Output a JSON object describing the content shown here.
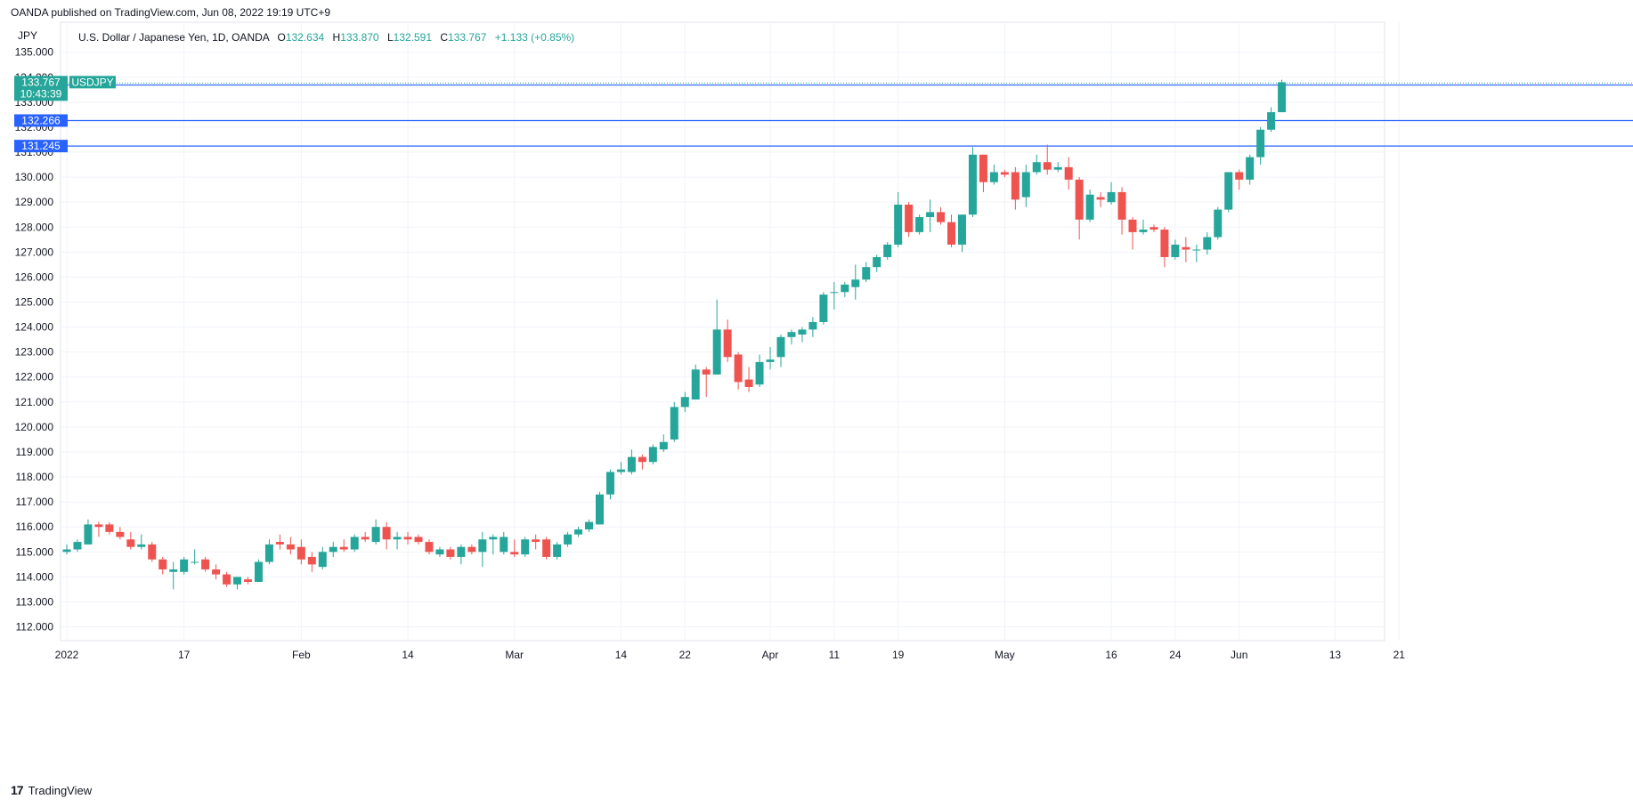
{
  "header": {
    "publisher_line": "OANDA published on TradingView.com, Jun 08, 2022 19:19 UTC+9"
  },
  "legend": {
    "symbol_desc": "U.S. Dollar / Japanese Yen, 1D, OANDA",
    "o_label": "O",
    "o_value": "132.634",
    "h_label": "H",
    "h_value": "133.870",
    "l_label": "L",
    "l_value": "132.591",
    "c_label": "C",
    "c_value": "133.767",
    "change": "+1.133 (+0.85%)"
  },
  "footer": {
    "brand": "TradingView",
    "mark": "17"
  },
  "colors": {
    "up": "#26a69a",
    "down": "#ef5350",
    "hline": "#2962ff",
    "price_tag": "#26a69a",
    "grid": "#f0f3fa"
  },
  "chart_data": {
    "type": "candlestick",
    "title": "U.S. Dollar / Japanese Yen, 1D, OANDA",
    "currency_label": "JPY",
    "y_ticks": [
      "112.000",
      "113.000",
      "114.000",
      "115.000",
      "116.000",
      "117.000",
      "118.000",
      "119.000",
      "120.000",
      "121.000",
      "122.000",
      "123.000",
      "124.000",
      "125.000",
      "126.000",
      "127.000",
      "128.000",
      "129.000",
      "130.000",
      "131.000",
      "132.000",
      "133.000",
      "134.000",
      "135.000"
    ],
    "ylim": [
      111.45,
      136.2
    ],
    "x_ticks": [
      {
        "label": "2022",
        "idx": 0
      },
      {
        "label": "17",
        "idx": 11
      },
      {
        "label": "Feb",
        "idx": 22
      },
      {
        "label": "14",
        "idx": 32
      },
      {
        "label": "Mar",
        "idx": 42
      },
      {
        "label": "14",
        "idx": 52
      },
      {
        "label": "22",
        "idx": 58
      },
      {
        "label": "Apr",
        "idx": 66
      },
      {
        "label": "11",
        "idx": 72
      },
      {
        "label": "19",
        "idx": 78
      },
      {
        "label": "May",
        "idx": 88
      },
      {
        "label": "16",
        "idx": 98
      },
      {
        "label": "24",
        "idx": 104
      },
      {
        "label": "Jun",
        "idx": 110
      },
      {
        "label": "13",
        "idx": 119
      },
      {
        "label": "21",
        "idx": 125
      }
    ],
    "horizontal_lines": [
      {
        "value": 133.687,
        "label": "133.687"
      },
      {
        "value": 132.266,
        "label": "132.266"
      },
      {
        "value": 131.245,
        "label": "131.245"
      }
    ],
    "last_price": {
      "value": 133.767,
      "label": "133.767",
      "countdown": "10:43:39",
      "symbol": "USDJPY"
    },
    "candles": [
      {
        "o": 115.0,
        "h": 115.3,
        "l": 114.9,
        "c": 115.1
      },
      {
        "o": 115.1,
        "h": 115.5,
        "l": 115.0,
        "c": 115.4
      },
      {
        "o": 115.3,
        "h": 116.3,
        "l": 115.3,
        "c": 116.1
      },
      {
        "o": 116.1,
        "h": 116.2,
        "l": 115.6,
        "c": 116.0
      },
      {
        "o": 116.1,
        "h": 116.2,
        "l": 115.7,
        "c": 115.8
      },
      {
        "o": 115.8,
        "h": 116.0,
        "l": 115.5,
        "c": 115.6
      },
      {
        "o": 115.5,
        "h": 115.8,
        "l": 115.1,
        "c": 115.2
      },
      {
        "o": 115.2,
        "h": 115.7,
        "l": 115.1,
        "c": 115.3
      },
      {
        "o": 115.3,
        "h": 115.4,
        "l": 114.6,
        "c": 114.7
      },
      {
        "o": 114.7,
        "h": 114.8,
        "l": 114.1,
        "c": 114.3
      },
      {
        "o": 114.2,
        "h": 114.6,
        "l": 113.5,
        "c": 114.3
      },
      {
        "o": 114.2,
        "h": 114.8,
        "l": 114.1,
        "c": 114.7
      },
      {
        "o": 114.6,
        "h": 115.1,
        "l": 114.5,
        "c": 114.6
      },
      {
        "o": 114.7,
        "h": 114.8,
        "l": 114.2,
        "c": 114.3
      },
      {
        "o": 114.3,
        "h": 114.5,
        "l": 113.9,
        "c": 114.1
      },
      {
        "o": 114.1,
        "h": 114.2,
        "l": 113.6,
        "c": 113.7
      },
      {
        "o": 113.7,
        "h": 114.0,
        "l": 113.5,
        "c": 114.0
      },
      {
        "o": 113.9,
        "h": 114.0,
        "l": 113.7,
        "c": 113.8
      },
      {
        "o": 113.8,
        "h": 114.7,
        "l": 113.8,
        "c": 114.6
      },
      {
        "o": 114.6,
        "h": 115.5,
        "l": 114.5,
        "c": 115.3
      },
      {
        "o": 115.4,
        "h": 115.7,
        "l": 115.1,
        "c": 115.3
      },
      {
        "o": 115.3,
        "h": 115.6,
        "l": 114.9,
        "c": 115.1
      },
      {
        "o": 115.2,
        "h": 115.5,
        "l": 114.5,
        "c": 114.7
      },
      {
        "o": 114.8,
        "h": 115.0,
        "l": 114.2,
        "c": 114.5
      },
      {
        "o": 114.4,
        "h": 115.2,
        "l": 114.3,
        "c": 115.0
      },
      {
        "o": 115.0,
        "h": 115.4,
        "l": 114.8,
        "c": 115.2
      },
      {
        "o": 115.2,
        "h": 115.5,
        "l": 115.0,
        "c": 115.1
      },
      {
        "o": 115.1,
        "h": 115.7,
        "l": 115.0,
        "c": 115.6
      },
      {
        "o": 115.6,
        "h": 115.8,
        "l": 115.4,
        "c": 115.5
      },
      {
        "o": 115.4,
        "h": 116.3,
        "l": 115.3,
        "c": 116.0
      },
      {
        "o": 116.0,
        "h": 116.2,
        "l": 115.1,
        "c": 115.5
      },
      {
        "o": 115.5,
        "h": 115.8,
        "l": 115.1,
        "c": 115.6
      },
      {
        "o": 115.6,
        "h": 115.8,
        "l": 115.3,
        "c": 115.5
      },
      {
        "o": 115.6,
        "h": 115.7,
        "l": 115.3,
        "c": 115.4
      },
      {
        "o": 115.4,
        "h": 115.5,
        "l": 114.9,
        "c": 115.0
      },
      {
        "o": 114.9,
        "h": 115.2,
        "l": 114.8,
        "c": 115.1
      },
      {
        "o": 115.1,
        "h": 115.2,
        "l": 114.7,
        "c": 114.8
      },
      {
        "o": 114.8,
        "h": 115.3,
        "l": 114.5,
        "c": 115.2
      },
      {
        "o": 115.2,
        "h": 115.3,
        "l": 114.9,
        "c": 115.0
      },
      {
        "o": 115.0,
        "h": 115.8,
        "l": 114.4,
        "c": 115.5
      },
      {
        "o": 115.5,
        "h": 115.7,
        "l": 114.9,
        "c": 115.6
      },
      {
        "o": 115.0,
        "h": 115.8,
        "l": 114.9,
        "c": 115.6
      },
      {
        "o": 115.0,
        "h": 115.5,
        "l": 114.8,
        "c": 114.9
      },
      {
        "o": 114.9,
        "h": 115.6,
        "l": 114.8,
        "c": 115.5
      },
      {
        "o": 115.5,
        "h": 115.7,
        "l": 115.1,
        "c": 115.4
      },
      {
        "o": 115.5,
        "h": 115.6,
        "l": 114.7,
        "c": 114.8
      },
      {
        "o": 114.8,
        "h": 115.4,
        "l": 114.7,
        "c": 115.3
      },
      {
        "o": 115.3,
        "h": 115.8,
        "l": 115.2,
        "c": 115.7
      },
      {
        "o": 115.7,
        "h": 116.0,
        "l": 115.6,
        "c": 115.9
      },
      {
        "o": 115.9,
        "h": 116.3,
        "l": 115.8,
        "c": 116.2
      },
      {
        "o": 116.1,
        "h": 117.4,
        "l": 116.1,
        "c": 117.3
      },
      {
        "o": 117.3,
        "h": 118.3,
        "l": 117.1,
        "c": 118.2
      },
      {
        "o": 118.2,
        "h": 118.6,
        "l": 118.1,
        "c": 118.3
      },
      {
        "o": 118.2,
        "h": 119.1,
        "l": 118.1,
        "c": 118.8
      },
      {
        "o": 118.8,
        "h": 118.9,
        "l": 118.3,
        "c": 118.6
      },
      {
        "o": 118.6,
        "h": 119.3,
        "l": 118.5,
        "c": 119.2
      },
      {
        "o": 119.1,
        "h": 119.7,
        "l": 119.0,
        "c": 119.4
      },
      {
        "o": 119.5,
        "h": 121.0,
        "l": 119.4,
        "c": 120.8
      },
      {
        "o": 120.8,
        "h": 121.4,
        "l": 120.6,
        "c": 121.2
      },
      {
        "o": 121.1,
        "h": 122.5,
        "l": 121.1,
        "c": 122.3
      },
      {
        "o": 122.3,
        "h": 122.4,
        "l": 121.2,
        "c": 122.1
      },
      {
        "o": 122.1,
        "h": 125.1,
        "l": 122.1,
        "c": 123.9
      },
      {
        "o": 123.9,
        "h": 124.3,
        "l": 122.6,
        "c": 122.8
      },
      {
        "o": 122.9,
        "h": 123.0,
        "l": 121.5,
        "c": 121.8
      },
      {
        "o": 121.9,
        "h": 122.4,
        "l": 121.4,
        "c": 121.6
      },
      {
        "o": 121.7,
        "h": 122.9,
        "l": 121.6,
        "c": 122.6
      },
      {
        "o": 122.6,
        "h": 123.2,
        "l": 122.3,
        "c": 122.7
      },
      {
        "o": 122.8,
        "h": 123.7,
        "l": 122.4,
        "c": 123.6
      },
      {
        "o": 123.6,
        "h": 123.9,
        "l": 123.3,
        "c": 123.8
      },
      {
        "o": 123.7,
        "h": 124.0,
        "l": 123.4,
        "c": 123.9
      },
      {
        "o": 123.9,
        "h": 124.4,
        "l": 123.6,
        "c": 124.2
      },
      {
        "o": 124.2,
        "h": 125.4,
        "l": 124.1,
        "c": 125.3
      },
      {
        "o": 125.4,
        "h": 125.8,
        "l": 124.7,
        "c": 125.4
      },
      {
        "o": 125.4,
        "h": 125.8,
        "l": 125.2,
        "c": 125.7
      },
      {
        "o": 125.6,
        "h": 126.5,
        "l": 125.1,
        "c": 125.9
      },
      {
        "o": 125.9,
        "h": 126.6,
        "l": 125.8,
        "c": 126.4
      },
      {
        "o": 126.4,
        "h": 126.9,
        "l": 126.2,
        "c": 126.8
      },
      {
        "o": 126.8,
        "h": 127.4,
        "l": 126.7,
        "c": 127.3
      },
      {
        "o": 127.3,
        "h": 129.4,
        "l": 127.2,
        "c": 128.9
      },
      {
        "o": 128.9,
        "h": 129.0,
        "l": 127.6,
        "c": 127.8
      },
      {
        "o": 127.8,
        "h": 128.5,
        "l": 127.7,
        "c": 128.4
      },
      {
        "o": 128.4,
        "h": 129.1,
        "l": 127.8,
        "c": 128.6
      },
      {
        "o": 128.6,
        "h": 128.8,
        "l": 128.1,
        "c": 128.2
      },
      {
        "o": 128.2,
        "h": 128.5,
        "l": 127.2,
        "c": 127.3
      },
      {
        "o": 127.3,
        "h": 128.5,
        "l": 127.0,
        "c": 128.5
      },
      {
        "o": 128.5,
        "h": 131.2,
        "l": 128.4,
        "c": 130.9
      },
      {
        "o": 130.9,
        "h": 130.9,
        "l": 129.4,
        "c": 129.8
      },
      {
        "o": 129.8,
        "h": 130.5,
        "l": 129.7,
        "c": 130.2
      },
      {
        "o": 130.2,
        "h": 130.3,
        "l": 130.0,
        "c": 130.1
      },
      {
        "o": 130.2,
        "h": 130.4,
        "l": 128.7,
        "c": 129.1
      },
      {
        "o": 129.2,
        "h": 130.5,
        "l": 128.8,
        "c": 130.2
      },
      {
        "o": 130.2,
        "h": 130.9,
        "l": 130.1,
        "c": 130.6
      },
      {
        "o": 130.6,
        "h": 131.3,
        "l": 130.1,
        "c": 130.3
      },
      {
        "o": 130.3,
        "h": 130.6,
        "l": 130.2,
        "c": 130.4
      },
      {
        "o": 130.4,
        "h": 130.8,
        "l": 129.5,
        "c": 129.9
      },
      {
        "o": 129.9,
        "h": 130.0,
        "l": 127.5,
        "c": 128.3
      },
      {
        "o": 128.3,
        "h": 129.5,
        "l": 128.2,
        "c": 129.3
      },
      {
        "o": 129.2,
        "h": 129.4,
        "l": 128.8,
        "c": 129.1
      },
      {
        "o": 129.0,
        "h": 129.8,
        "l": 128.9,
        "c": 129.4
      },
      {
        "o": 129.4,
        "h": 129.6,
        "l": 127.7,
        "c": 128.3
      },
      {
        "o": 128.3,
        "h": 128.4,
        "l": 127.1,
        "c": 127.8
      },
      {
        "o": 127.8,
        "h": 128.3,
        "l": 127.7,
        "c": 127.9
      },
      {
        "o": 128.0,
        "h": 128.1,
        "l": 127.8,
        "c": 127.9
      },
      {
        "o": 127.9,
        "h": 128.0,
        "l": 126.4,
        "c": 126.8
      },
      {
        "o": 126.8,
        "h": 127.5,
        "l": 126.7,
        "c": 127.3
      },
      {
        "o": 127.2,
        "h": 127.6,
        "l": 126.6,
        "c": 127.1
      },
      {
        "o": 127.1,
        "h": 127.3,
        "l": 126.6,
        "c": 127.1
      },
      {
        "o": 127.1,
        "h": 127.8,
        "l": 126.9,
        "c": 127.6
      },
      {
        "o": 127.6,
        "h": 128.8,
        "l": 127.5,
        "c": 128.7
      },
      {
        "o": 128.7,
        "h": 130.2,
        "l": 128.6,
        "c": 130.2
      },
      {
        "o": 130.2,
        "h": 130.3,
        "l": 129.5,
        "c": 129.9
      },
      {
        "o": 129.9,
        "h": 130.9,
        "l": 129.7,
        "c": 130.8
      },
      {
        "o": 130.8,
        "h": 132.0,
        "l": 130.5,
        "c": 131.9
      },
      {
        "o": 131.9,
        "h": 132.8,
        "l": 131.8,
        "c": 132.6
      },
      {
        "o": 132.6,
        "h": 133.9,
        "l": 132.6,
        "c": 133.8
      }
    ]
  }
}
